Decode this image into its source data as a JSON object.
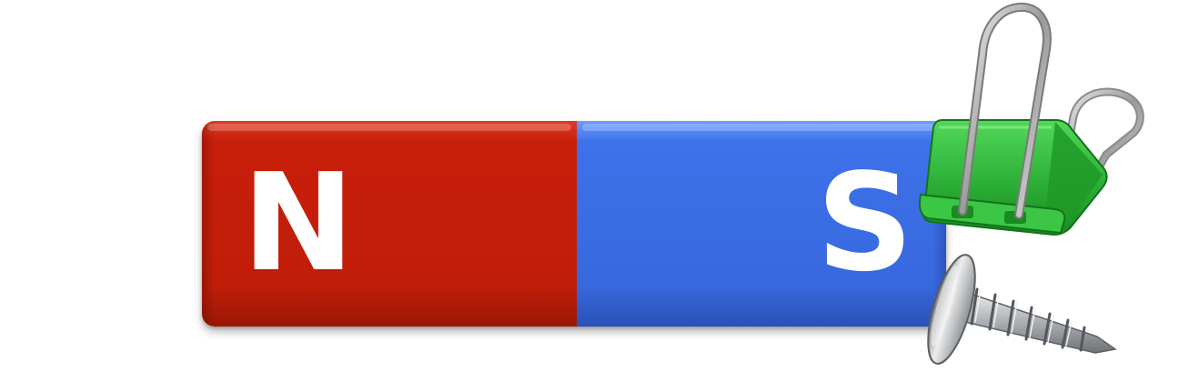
{
  "magnet": {
    "north_label": "N",
    "south_label": "S",
    "north_color": "#c51f0a",
    "south_color": "#3a6ce4"
  },
  "objects": {
    "binder_clip_color": "#2fb23a",
    "binder_clip_icon": "binder-clip-icon",
    "screw_icon": "screw-icon"
  }
}
